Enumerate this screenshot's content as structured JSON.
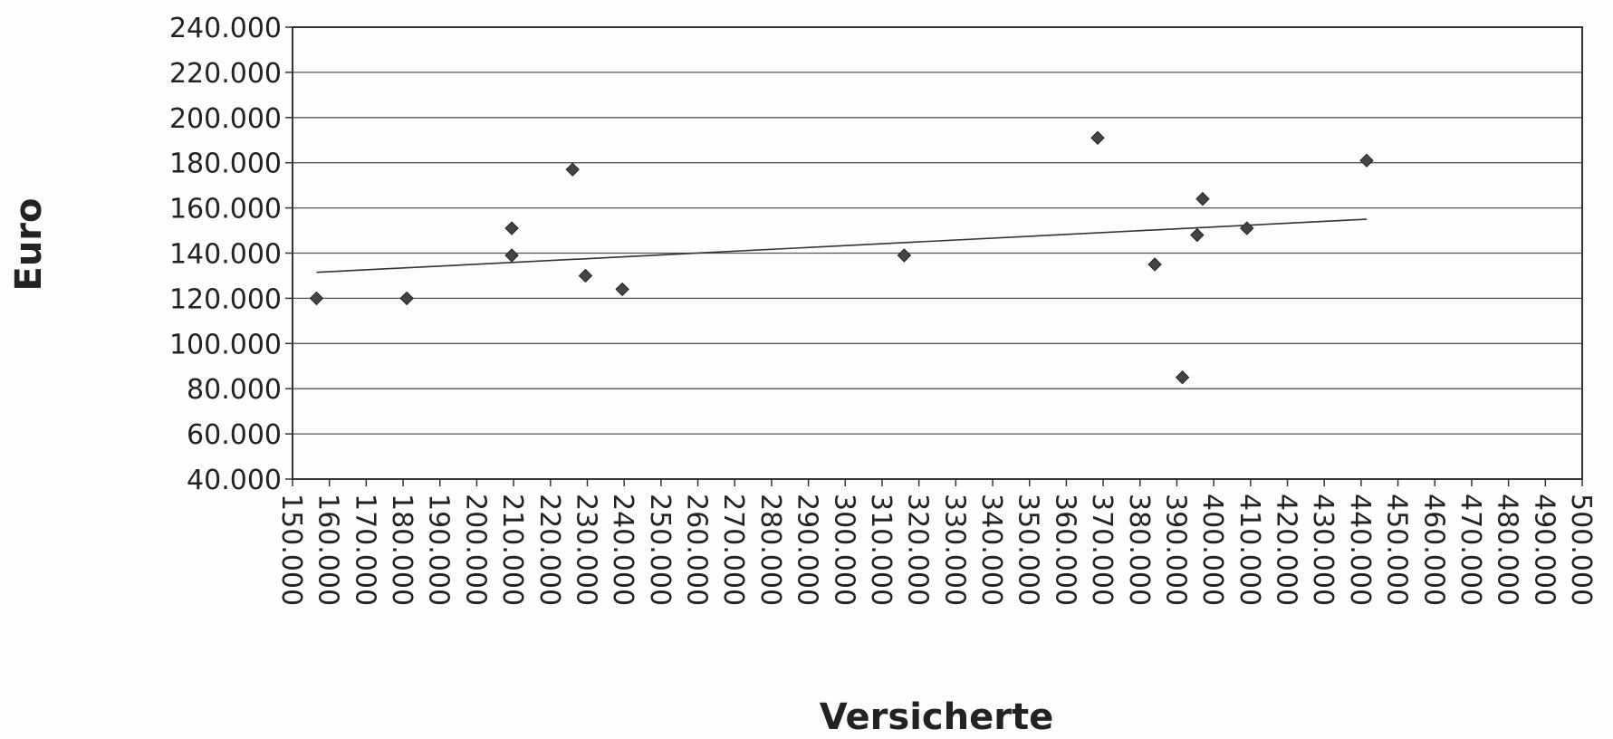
{
  "chart_data": {
    "type": "scatter",
    "title": "",
    "xlabel": "Versicherte",
    "ylabel": "Euro",
    "xlim": [
      150000,
      500000
    ],
    "ylim": [
      40000,
      240000
    ],
    "x_ticks": [
      "150.000",
      "160.000",
      "170.000",
      "180.000",
      "190.000",
      "200.000",
      "210.000",
      "220.000",
      "230.000",
      "240.000",
      "250.000",
      "260.000",
      "270.000",
      "280.000",
      "290.000",
      "300.000",
      "310.000",
      "320.000",
      "330.000",
      "340.000",
      "350.000",
      "360.000",
      "370.000",
      "380.000",
      "390.000",
      "400.000",
      "410.000",
      "420.000",
      "430.000",
      "440.000",
      "450.000",
      "460.000",
      "470.000",
      "480.000",
      "490.000",
      "500.000"
    ],
    "y_ticks": [
      "40.000",
      "60.000",
      "80.000",
      "100.000",
      "120.000",
      "140.000",
      "160.000",
      "180.000",
      "200.000",
      "220.000",
      "240.000"
    ],
    "grid": true,
    "legend": "none",
    "marker_color": "#444444",
    "points": [
      {
        "x": 156500,
        "y": 120000
      },
      {
        "x": 181000,
        "y": 120000
      },
      {
        "x": 209500,
        "y": 151000
      },
      {
        "x": 209500,
        "y": 139000
      },
      {
        "x": 226000,
        "y": 177000
      },
      {
        "x": 229500,
        "y": 130000
      },
      {
        "x": 239500,
        "y": 124000
      },
      {
        "x": 316000,
        "y": 139000
      },
      {
        "x": 368500,
        "y": 191000
      },
      {
        "x": 384000,
        "y": 135000
      },
      {
        "x": 391500,
        "y": 85000
      },
      {
        "x": 395500,
        "y": 148000
      },
      {
        "x": 397000,
        "y": 164000
      },
      {
        "x": 409000,
        "y": 151000
      },
      {
        "x": 441500,
        "y": 181000
      }
    ],
    "trendline": {
      "x": [
        156500,
        441500
      ],
      "y": [
        131500,
        155000
      ],
      "color": "#333333"
    }
  }
}
